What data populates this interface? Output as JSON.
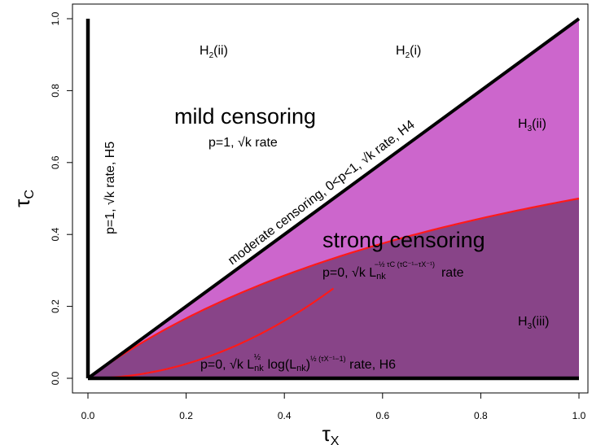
{
  "chart_data": {
    "type": "area",
    "xlabel": "τX",
    "ylabel": "τC",
    "xlim": [
      0,
      1
    ],
    "ylim": [
      0,
      1
    ],
    "x_ticks": [
      "0.0",
      "0.2",
      "0.4",
      "0.6",
      "0.8",
      "1.0"
    ],
    "y_ticks": [
      "0.0",
      "0.2",
      "0.4",
      "0.6",
      "0.8",
      "1.0"
    ],
    "grid": false,
    "colors": {
      "mild": "#ffb3ff",
      "moderate": "#cc66cc",
      "strong": "#884488",
      "red_curve": "#ff1a1a",
      "black_line": "#000000"
    },
    "series": [
      {
        "name": "",
        "type": "line",
        "color": "#ff1a1a",
        "x": [
          0,
          0.1,
          0.2,
          0.3,
          0.4,
          0.5
        ],
        "y": [
          0,
          0.01,
          0.04,
          0.09,
          0.16,
          0.25
        ]
      },
      {
        "name": "",
        "type": "line",
        "color": "#000000",
        "x": [
          0,
          1
        ],
        "y": [
          0,
          1
        ]
      },
      {
        "name": "",
        "type": "line",
        "color": "#ff1a1a",
        "x": [
          0,
          0.2,
          0.4,
          0.6,
          0.8,
          1.0
        ],
        "y": [
          0,
          0.167,
          0.286,
          0.375,
          0.444,
          0.5
        ]
      }
    ],
    "annotations": {
      "h2ii": "H2(ii)",
      "h2i": "H2(i)",
      "h3ii": "H3(ii)",
      "h3iii": "H3(iii)",
      "mild_title": "mild censoring",
      "mild_rate": "p=1,  √k  rate",
      "moderate": "moderate censoring,  0<p<1,  √k  rate, H4",
      "vertical": "p=1, √k  rate, H5",
      "strong_title": "strong censoring",
      "strong_rate_a": "p=0, √k  L",
      "strong_rate_sub": "nk",
      "strong_rate_sup": "−½ τC (τC⁻¹−τX⁻¹)",
      "strong_rate_b": "rate",
      "bottom_rate_a": "p=0, √k  L",
      "bottom_rate_sub1": "nk",
      "bottom_rate_sup1": "½",
      "bottom_rate_b": " log(L",
      "bottom_rate_sub2": "nk",
      "bottom_rate_c": ")",
      "bottom_rate_sup2": "½ (τX⁻¹−1)",
      "bottom_rate_d": "  rate, H6"
    }
  }
}
